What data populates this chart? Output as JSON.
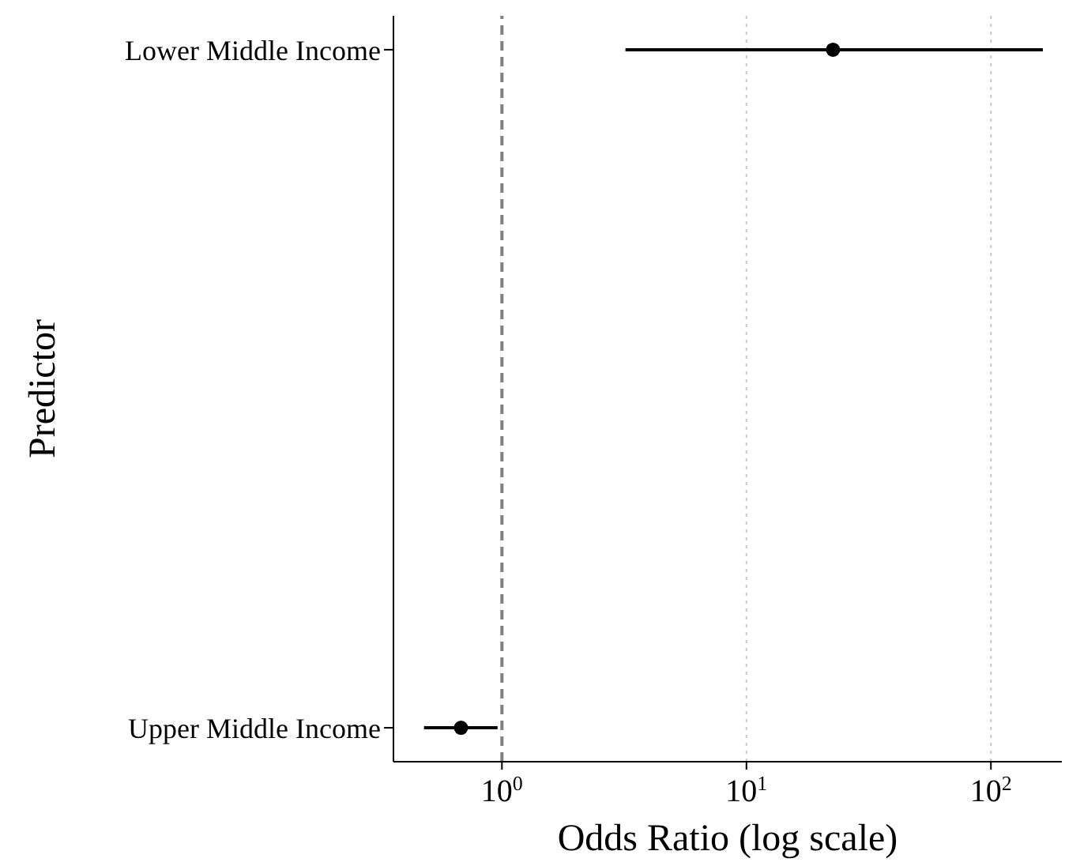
{
  "chart_data": {
    "type": "scatter",
    "orientation": "horizontal",
    "xlabel": "Odds Ratio (log scale)",
    "ylabel": "Predictor",
    "categories": [
      "Lower Middle Income",
      "Upper Middle Income"
    ],
    "values": [
      22.6,
      0.68
    ],
    "errors": [
      [
        3.2,
        163
      ],
      [
        0.48,
        0.96
      ]
    ],
    "color": "#000000",
    "marker": "circle",
    "log": "x",
    "xlim": [
      0.36,
      195
    ],
    "xticks": [
      {
        "value": 1,
        "label": "10$^{0}$"
      },
      {
        "value": 10,
        "label": "10$^{1}$"
      },
      {
        "value": 100,
        "label": "10$^{2}$"
      }
    ],
    "ref_lines": [
      {
        "axis": "x",
        "value": 1,
        "color": "#808080",
        "line_style": "dashed"
      },
      {
        "axis": "x",
        "value": 10,
        "color": "#c8c8c8",
        "line_style": "dotted"
      },
      {
        "axis": "x",
        "value": 100,
        "color": "#c8c8c8",
        "line_style": "dotted"
      }
    ]
  }
}
